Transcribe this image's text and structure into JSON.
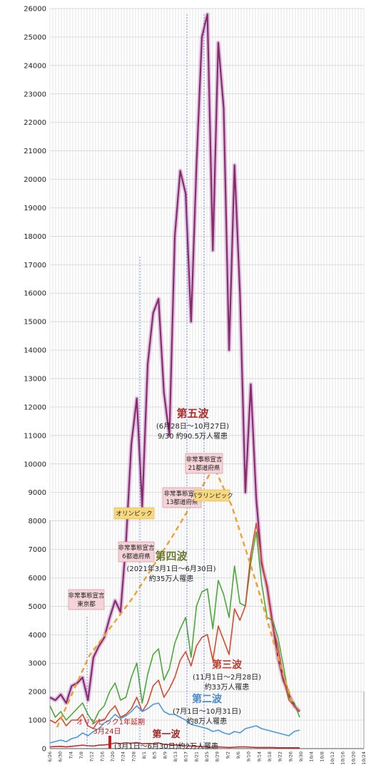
{
  "chart_data": {
    "type": "line",
    "y_ticks": [
      "26000",
      "25000",
      "24000",
      "23000",
      "22000",
      "21000",
      "20000",
      "19000",
      "18000",
      "17000",
      "16000",
      "15000",
      "14000",
      "13000",
      "12000",
      "11000",
      "10000",
      "9000",
      "8000",
      "7000",
      "6000",
      "5000",
      "4000",
      "3000",
      "2000",
      "1000",
      "0"
    ],
    "ylim": [
      0,
      26000
    ],
    "inner_ylim": [
      0,
      8000
    ],
    "x_ticks": [
      "6/26",
      "6/30",
      "7/4",
      "7/8",
      "7/12",
      "7/16",
      "7/20",
      "7/24",
      "7/28",
      "8/1",
      "8/5",
      "8/9",
      "8/13",
      "8/17",
      "8/21",
      "8/25",
      "8/29",
      "9/2",
      "9/6",
      "9/10",
      "9/14",
      "9/18",
      "9/22",
      "9/26",
      "9/30",
      "10/4",
      "10/8",
      "10/12",
      "10/16",
      "10/20",
      "10/24"
    ],
    "series": [
      {
        "key": "fifth",
        "color": "#8b2a6a",
        "glow": "#c89ad0",
        "values": [
          1800,
          1700,
          1900,
          1600,
          2200,
          2300,
          2500,
          1700,
          3200,
          3600,
          3900,
          4600,
          5200,
          4800,
          7200,
          10700,
          12300,
          8500,
          13500,
          15300,
          15800,
          12500,
          11000,
          18000,
          20300,
          19500,
          15000,
          20500,
          25000,
          25800,
          17500,
          24800,
          22500,
          14000,
          20500,
          16000,
          9000,
          12800,
          8800,
          6500,
          5700,
          4400,
          3200,
          2400,
          1900,
          1500,
          1300
        ]
      },
      {
        "key": "fourth",
        "color": "#4aa83a",
        "values": [
          1500,
          1100,
          1300,
          1000,
          1200,
          1400,
          1600,
          1200,
          900,
          1300,
          1500,
          2000,
          2300,
          1700,
          1800,
          2500,
          3000,
          1600,
          2600,
          3300,
          3500,
          2400,
          2800,
          3700,
          4200,
          4600,
          3200,
          5000,
          5500,
          5600,
          4200,
          5900,
          5400,
          4600,
          6400,
          5100,
          5000,
          6500,
          7600,
          5800,
          4600,
          4500,
          3900,
          2900,
          1800,
          1600,
          1100
        ]
      },
      {
        "key": "third",
        "color": "#d64a2a",
        "values": [
          1000,
          900,
          1100,
          800,
          1000,
          1000,
          1200,
          800,
          700,
          1000,
          1000,
          1300,
          1500,
          1100,
          1200,
          1400,
          1800,
          1300,
          1600,
          2200,
          2400,
          1800,
          2100,
          2500,
          3100,
          3400,
          2900,
          3600,
          3900,
          4000,
          3100,
          4300,
          3800,
          3300,
          4900,
          4500,
          5000,
          6800,
          7900,
          6600,
          5600,
          4300,
          3600,
          2500,
          1700,
          1500,
          1300
        ]
      },
      {
        "key": "second",
        "color": "#4a9ad8",
        "values": [
          200,
          250,
          300,
          240,
          350,
          400,
          550,
          450,
          600,
          700,
          900,
          1000,
          1200,
          1050,
          1150,
          1300,
          1500,
          1300,
          1400,
          1550,
          1600,
          1300,
          1200,
          1200,
          1100,
          1000,
          850,
          800,
          750,
          700,
          600,
          650,
          550,
          500,
          600,
          550,
          700,
          750,
          800,
          700,
          650,
          600,
          550,
          500,
          450,
          600,
          650
        ]
      },
      {
        "key": "first",
        "color": "#b83030",
        "values": [
          60,
          70,
          80,
          60,
          80,
          100,
          120,
          100,
          90,
          120,
          130,
          150,
          200,
          180,
          200,
          190,
          210,
          170,
          180,
          170,
          200,
          150,
          140,
          130,
          110,
          100,
          90,
          80,
          70,
          60,
          50,
          60,
          50,
          40,
          50,
          60,
          60,
          50,
          40,
          40,
          40,
          40,
          30,
          30,
          30,
          30,
          30
        ]
      }
    ],
    "waves": [
      {
        "title": "第五波",
        "sub1": "(6月28日～10月27日)",
        "sub2": "9/30 約90.5万人罹患"
      },
      {
        "title": "第四波",
        "sub1": "(2021年3月1日～6月30日)",
        "sub2": "約35万人罹患"
      },
      {
        "title": "第三波",
        "sub1": "(11月1日～2月28日)",
        "sub2": "約33万人罹患"
      },
      {
        "title": "第二波",
        "sub1": "(7月1日～10月31日)",
        "sub2": "約8万人罹患"
      },
      {
        "title": "第一波",
        "sub1": "(3月1日～6月30日)約2万人罹患"
      }
    ],
    "tags": [
      {
        "key": "kinkyu21",
        "lines": [
          "非常事態宣言",
          "21都道府県"
        ]
      },
      {
        "key": "kinkyu13",
        "lines": [
          "非常事態宣言",
          "13都道府県"
        ]
      },
      {
        "key": "kinkyu6",
        "lines": [
          "非常事態宣言",
          "6都道府県"
        ]
      },
      {
        "key": "kinkyutokyo",
        "lines": [
          "非常事態宣言",
          "東京都"
        ]
      },
      {
        "key": "olympic",
        "lines": [
          "オリンピック"
        ]
      },
      {
        "key": "paralympic",
        "lines": [
          "パラリンピック"
        ]
      }
    ],
    "olympic_postponed_label": "オリンピック1年延期",
    "olympic_postponed_date": "3月24日"
  }
}
